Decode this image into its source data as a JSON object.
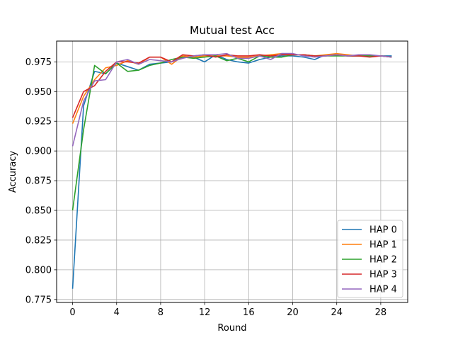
{
  "chart_data": {
    "type": "line",
    "title": "Mutual test Acc",
    "xlabel": "Round",
    "ylabel": "Accuracy",
    "xlim": [
      -1.45,
      30.45
    ],
    "ylim": [
      0.7725,
      0.9925
    ],
    "xticks": [
      0,
      4,
      8,
      12,
      16,
      20,
      24,
      28
    ],
    "yticks": [
      0.775,
      0.8,
      0.825,
      0.85,
      0.875,
      0.9,
      0.925,
      0.95,
      0.975
    ],
    "ytick_labels": [
      "0.775",
      "0.800",
      "0.825",
      "0.850",
      "0.875",
      "0.900",
      "0.925",
      "0.950",
      "0.975"
    ],
    "grid": true,
    "legend_position": "lower-right",
    "x": [
      0,
      1,
      2,
      3,
      4,
      5,
      6,
      7,
      8,
      9,
      10,
      11,
      12,
      13,
      14,
      15,
      16,
      17,
      18,
      19,
      20,
      21,
      22,
      23,
      24,
      25,
      26,
      27,
      28,
      29
    ],
    "series": [
      {
        "name": "HAP 0",
        "color": "#1f77b4",
        "values": [
          0.784,
          0.938,
          0.967,
          0.965,
          0.974,
          0.971,
          0.968,
          0.973,
          0.974,
          0.975,
          0.979,
          0.979,
          0.975,
          0.981,
          0.977,
          0.975,
          0.974,
          0.977,
          0.979,
          0.98,
          0.98,
          0.979,
          0.977,
          0.981,
          0.981,
          0.98,
          0.98,
          0.98,
          0.98,
          0.98
        ]
      },
      {
        "name": "HAP 1",
        "color": "#ff7f0e",
        "values": [
          0.923,
          0.946,
          0.96,
          0.97,
          0.972,
          0.976,
          0.973,
          0.979,
          0.979,
          0.973,
          0.98,
          0.979,
          0.98,
          0.98,
          0.98,
          0.979,
          0.979,
          0.98,
          0.981,
          0.982,
          0.981,
          0.981,
          0.98,
          0.981,
          0.982,
          0.981,
          0.98,
          0.98,
          0.98,
          0.979
        ]
      },
      {
        "name": "HAP 2",
        "color": "#2ca02c",
        "values": [
          0.85,
          0.918,
          0.972,
          0.965,
          0.974,
          0.967,
          0.968,
          0.972,
          0.974,
          0.977,
          0.979,
          0.978,
          0.979,
          0.98,
          0.976,
          0.978,
          0.975,
          0.98,
          0.979,
          0.979,
          0.981,
          0.981,
          0.98,
          0.98,
          0.98,
          0.98,
          0.98,
          0.98,
          0.98,
          0.979
        ]
      },
      {
        "name": "HAP 3",
        "color": "#d62728",
        "values": [
          0.928,
          0.95,
          0.955,
          0.967,
          0.975,
          0.975,
          0.974,
          0.979,
          0.979,
          0.975,
          0.981,
          0.98,
          0.981,
          0.979,
          0.981,
          0.98,
          0.98,
          0.981,
          0.98,
          0.981,
          0.981,
          0.981,
          0.98,
          0.98,
          0.981,
          0.98,
          0.98,
          0.979,
          0.98,
          0.979
        ]
      },
      {
        "name": "HAP 4",
        "color": "#9467bd",
        "values": [
          0.904,
          0.942,
          0.959,
          0.96,
          0.975,
          0.977,
          0.973,
          0.977,
          0.976,
          0.975,
          0.978,
          0.98,
          0.981,
          0.981,
          0.982,
          0.978,
          0.978,
          0.98,
          0.977,
          0.982,
          0.982,
          0.98,
          0.979,
          0.98,
          0.981,
          0.98,
          0.981,
          0.981,
          0.98,
          0.979
        ]
      }
    ]
  }
}
